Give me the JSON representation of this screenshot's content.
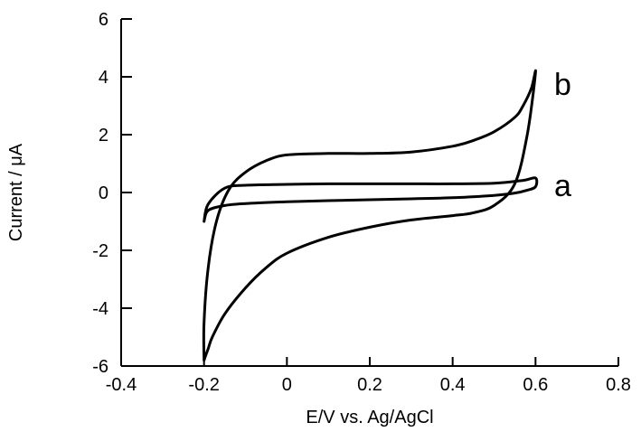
{
  "chart_data": {
    "type": "line",
    "title": "",
    "xlabel": "E/V vs. Ag/AgCl",
    "ylabel": "Current / μA",
    "xlim": [
      -0.4,
      0.8
    ],
    "ylim": [
      -6,
      6
    ],
    "xticks": [
      -0.4,
      -0.2,
      0,
      0.2,
      0.4,
      0.6,
      0.8
    ],
    "xtick_labels": [
      "-0.4",
      "-0.2",
      "0",
      "0.2",
      "0.4",
      "0.6",
      "0.8"
    ],
    "yticks": [
      -6,
      -4,
      -2,
      0,
      2,
      4,
      6
    ],
    "ytick_labels": [
      "-6",
      "-4",
      "-2",
      "0",
      "2",
      "4",
      "6"
    ],
    "grid": false,
    "series": [
      {
        "name": "a",
        "x": [
          -0.2,
          -0.19,
          -0.15,
          -0.1,
          0,
          0.1,
          0.2,
          0.3,
          0.4,
          0.5,
          0.55,
          0.58,
          0.6,
          0.6,
          0.57,
          0.5,
          0.4,
          0.3,
          0.2,
          0.1,
          0,
          -0.1,
          -0.15,
          -0.19,
          -0.2
        ],
        "y": [
          -1.0,
          -0.62,
          -0.45,
          -0.38,
          -0.32,
          -0.28,
          -0.25,
          -0.22,
          -0.18,
          -0.1,
          -0.02,
          0.08,
          0.2,
          0.5,
          0.42,
          0.32,
          0.3,
          0.3,
          0.3,
          0.3,
          0.28,
          0.25,
          0.15,
          -0.4,
          -1.0
        ]
      },
      {
        "name": "b",
        "x": [
          -0.2,
          -0.2,
          -0.19,
          -0.17,
          -0.14,
          -0.1,
          -0.05,
          0,
          0.1,
          0.2,
          0.3,
          0.4,
          0.45,
          0.5,
          0.55,
          0.57,
          0.59,
          0.6,
          0.58,
          0.55,
          0.5,
          0.45,
          0.4,
          0.3,
          0.2,
          0.1,
          0,
          -0.05,
          -0.1,
          -0.15,
          -0.18,
          -0.19,
          -0.2
        ],
        "y": [
          -5.8,
          -4.5,
          -2.6,
          -1.0,
          0.1,
          0.7,
          1.1,
          1.3,
          1.35,
          1.35,
          1.4,
          1.6,
          1.8,
          2.1,
          2.6,
          3.0,
          3.6,
          4.15,
          2.0,
          0.3,
          -0.45,
          -0.7,
          -0.8,
          -0.95,
          -1.2,
          -1.55,
          -2.1,
          -2.6,
          -3.3,
          -4.2,
          -5.0,
          -5.4,
          -5.8
        ]
      }
    ],
    "annotations": [
      {
        "text": "b",
        "x": 0.645,
        "y": 3.75
      },
      {
        "text": "a",
        "x": 0.645,
        "y": 0.25
      }
    ]
  }
}
